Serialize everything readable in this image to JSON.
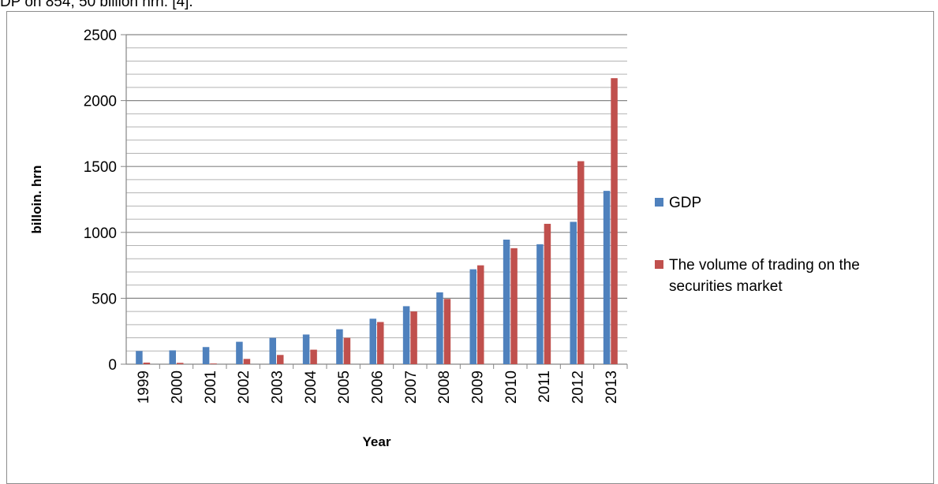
{
  "page": {
    "top_text": "DP on 854, 50 billion hrn. [4]."
  },
  "chart_data": {
    "type": "bar",
    "title": "",
    "xlabel": "Year",
    "ylabel": "billoin. hrn",
    "ylim": [
      0,
      2500
    ],
    "yticks": [
      0,
      500,
      1000,
      1500,
      2000,
      2500
    ],
    "ytick_labels": [
      "0",
      "500",
      "1000",
      "1500",
      "2000",
      "2500"
    ],
    "grid": true,
    "legend_position": "right",
    "categories": [
      "1999",
      "2000",
      "2001",
      "2002",
      "2003",
      "2004",
      "2005",
      "2006",
      "2007",
      "2008",
      "2009",
      "2010",
      "2011",
      "2012",
      "2013"
    ],
    "series": [
      {
        "name": "GDP",
        "color": "#4f81bd",
        "values": [
          100,
          105,
          130,
          170,
          200,
          225,
          265,
          345,
          440,
          545,
          720,
          945,
          910,
          1080,
          1315
        ]
      },
      {
        "name": "The volume of trading on the securities market",
        "color": "#c0504d",
        "values": [
          12,
          10,
          5,
          40,
          70,
          110,
          200,
          320,
          400,
          495,
          750,
          880,
          1065,
          1540,
          2170
        ]
      }
    ]
  }
}
